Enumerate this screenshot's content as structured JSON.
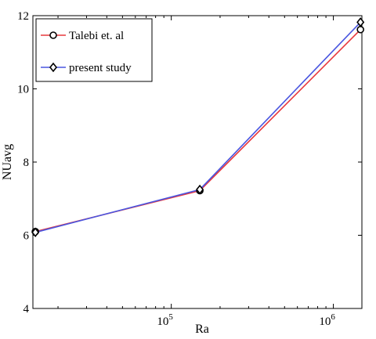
{
  "chart_data": {
    "type": "line",
    "xscale": "log",
    "xlabel": "Ra",
    "ylabel": "NUavg",
    "xlim": [
      14000,
      1500000
    ],
    "ylim": [
      4,
      12
    ],
    "y_ticks": [
      4,
      6,
      8,
      10,
      12
    ],
    "x_ticks": [
      {
        "value": 100000,
        "base": "10",
        "exp": "5"
      },
      {
        "value": 1000000,
        "base": "10",
        "exp": "6"
      }
    ],
    "grid": false,
    "legend_position": "top-left",
    "series": [
      {
        "name": "Talebi et. al",
        "color": "#e8383d",
        "marker": "circle",
        "x": [
          14500,
          150000,
          1470000
        ],
        "y": [
          6.1,
          7.22,
          11.62
        ]
      },
      {
        "name": "present study",
        "color": "#4a56e0",
        "marker": "diamond",
        "x": [
          14500,
          150000,
          1470000
        ],
        "y": [
          6.08,
          7.25,
          11.82
        ]
      }
    ]
  }
}
